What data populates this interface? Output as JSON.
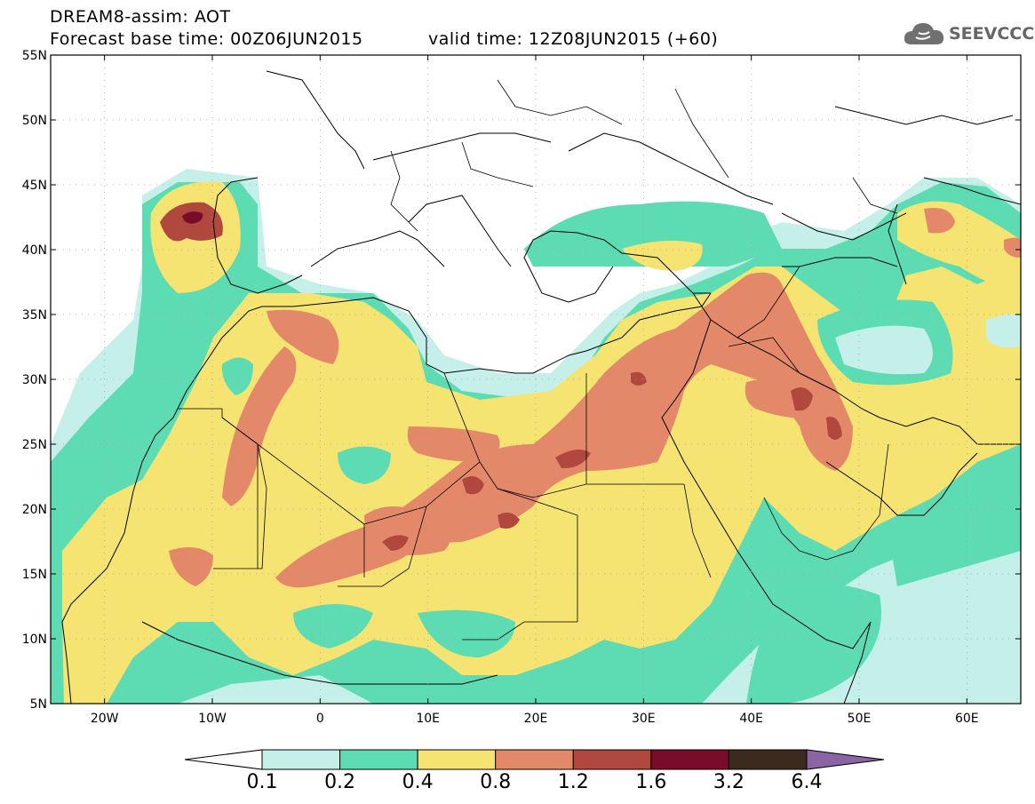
{
  "header": {
    "title": "DREAM8-assim: AOT",
    "base_time_label": "Forecast base time: 00Z06JUN2015",
    "valid_time_label": "valid time: 12Z08JUN2015 (+60)"
  },
  "logo": {
    "text": "SEEVCCC",
    "icon": "cloud-icon"
  },
  "map": {
    "lon_range": [
      -25,
      65
    ],
    "lat_range": [
      5,
      55
    ],
    "lat_ticks": [
      "5N",
      "10N",
      "15N",
      "20N",
      "25N",
      "30N",
      "35N",
      "40N",
      "45N",
      "50N",
      "55N"
    ],
    "lon_ticks": [
      "20W",
      "10W",
      "0",
      "10E",
      "20E",
      "30E",
      "40E",
      "50E",
      "60E"
    ],
    "gridlines": "dotted",
    "field": "Aerosol optical thickness (dust)"
  },
  "colorbar": {
    "levels": [
      "0.1",
      "0.2",
      "0.4",
      "0.8",
      "1.2",
      "1.6",
      "3.2",
      "6.4"
    ],
    "colors": [
      "#c5efe9",
      "#5ddcb4",
      "#f5e471",
      "#e4886a",
      "#b0483e",
      "#7a0c2a",
      "#3d2a1e"
    ],
    "below_color": "#ffffff",
    "above_color": "#8a64a4"
  }
}
